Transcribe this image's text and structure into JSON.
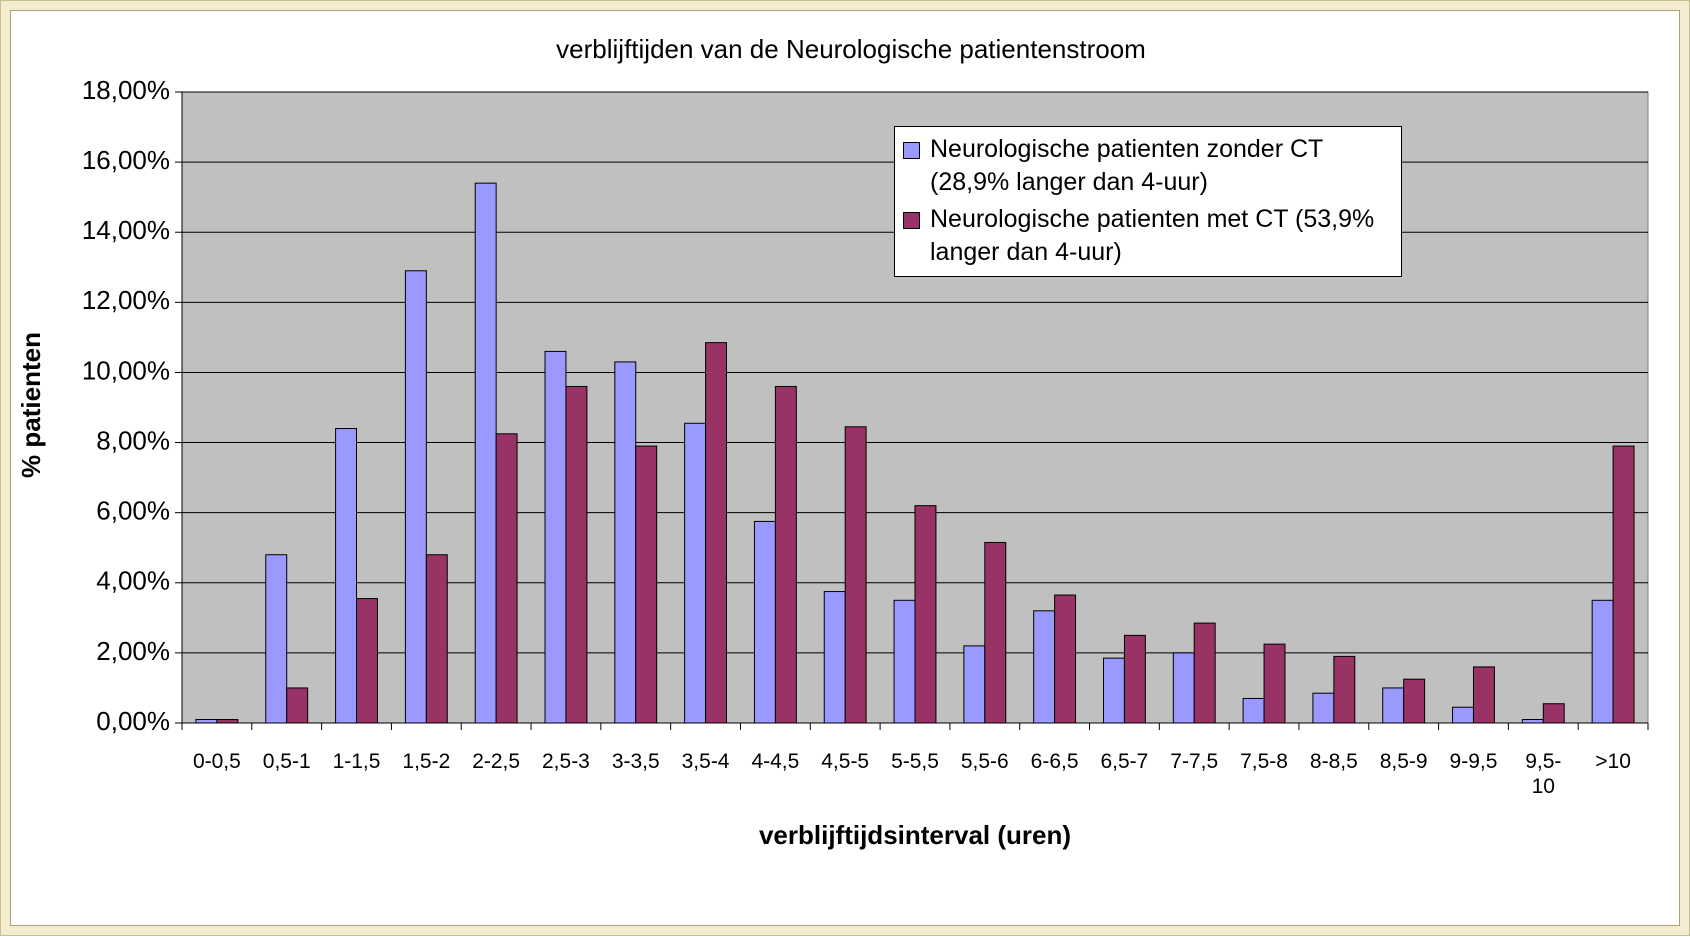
{
  "chart_data": {
    "type": "bar",
    "title": "verblijftijden van de Neurologische patientenstroom",
    "x_label": "verblijftijdsinterval (uren)",
    "y_label": "% patienten",
    "categories": [
      "0-0,5",
      "0,5-1",
      "1-1,5",
      "1,5-2",
      "2-2,5",
      "2,5-3",
      "3-3,5",
      "3,5-4",
      "4-4,5",
      "4,5-5",
      "5-5,5",
      "5,5-6",
      "6-6,5",
      "6,5-7",
      "7-7,5",
      "7,5-8",
      "8-8,5",
      "8,5-9",
      "9-9,5",
      "9,5-10",
      ">10"
    ],
    "series": [
      {
        "name": "Neurologische patienten zonder CT (28,9% langer dan 4-uur)",
        "color": "#9999ff",
        "values": [
          0.1,
          4.8,
          8.4,
          12.9,
          15.4,
          10.6,
          10.3,
          8.55,
          5.75,
          3.75,
          3.5,
          2.2,
          3.2,
          1.85,
          2.0,
          0.7,
          0.85,
          1.0,
          0.45,
          0.1,
          3.5
        ]
      },
      {
        "name": "Neurologische patienten met CT (53,9% langer dan 4-uur)",
        "color": "#993366",
        "values": [
          0.1,
          1.0,
          3.55,
          4.8,
          8.25,
          9.6,
          7.9,
          10.85,
          9.6,
          8.45,
          6.2,
          5.15,
          3.65,
          2.5,
          2.85,
          2.25,
          1.9,
          1.25,
          1.6,
          0.55,
          7.9
        ]
      }
    ],
    "ylim": [
      0,
      18
    ],
    "yticks": [
      {
        "value": 0,
        "label": "0,00%"
      },
      {
        "value": 2,
        "label": "2,00%"
      },
      {
        "value": 4,
        "label": "4,00%"
      },
      {
        "value": 6,
        "label": "6,00%"
      },
      {
        "value": 8,
        "label": "8,00%"
      },
      {
        "value": 10,
        "label": "10,00%"
      },
      {
        "value": 12,
        "label": "12,00%"
      },
      {
        "value": 14,
        "label": "14,00%"
      },
      {
        "value": 16,
        "label": "16,00%"
      },
      {
        "value": 18,
        "label": "18,00%"
      }
    ],
    "grid": true,
    "legend": "top-right"
  }
}
